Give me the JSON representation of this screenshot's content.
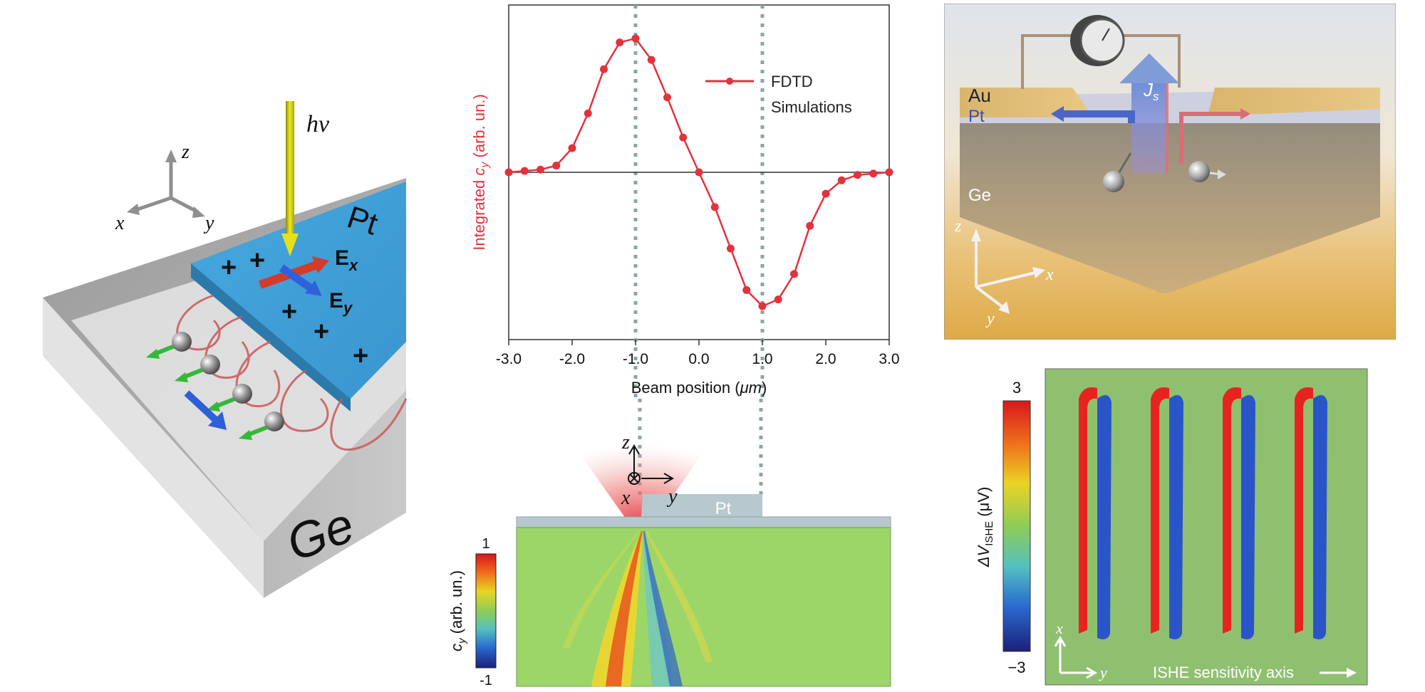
{
  "panel_a": {
    "photon_label": "hν",
    "axis_z": "z",
    "axis_x": "x",
    "axis_y": "y",
    "metal_label": "Pt",
    "substrate_label": "Ge",
    "field_x_label": "E",
    "field_x_sub": "x",
    "field_y_label": "E",
    "field_y_sub": "y",
    "charge_symbol": "+"
  },
  "panel_b": {
    "chart_data": {
      "type": "line",
      "title": "",
      "xlabel_prefix": "Beam position (",
      "xlabel_unit": "μm",
      "xlabel_suffix": ")",
      "ylabel_prefix": "Integrated ",
      "ylabel_var": "c",
      "ylabel_sub": "y",
      "ylabel_suffix": " (arb. un.)",
      "xlim": [
        -3.0,
        3.0
      ],
      "ylim": [
        -1.25,
        1.25
      ],
      "xticks": [
        "-3.0",
        "-2.0",
        "-1.0",
        "0.0",
        "1.0",
        "2.0",
        "3.0"
      ],
      "reference_lines_x": [
        -1.0,
        1.0
      ],
      "legend_position": "top-right",
      "series": [
        {
          "name_line1": "FDTD",
          "name_line2": "Simulations",
          "color": "#e2323c",
          "x": [
            -3.0,
            -2.75,
            -2.5,
            -2.25,
            -2.0,
            -1.75,
            -1.5,
            -1.25,
            -1.0,
            -0.75,
            -0.5,
            -0.25,
            0.0,
            0.25,
            0.5,
            0.75,
            1.0,
            1.25,
            1.5,
            1.75,
            2.0,
            2.25,
            2.5,
            2.75,
            3.0
          ],
          "y": [
            0.0,
            0.01,
            0.02,
            0.05,
            0.18,
            0.44,
            0.77,
            0.97,
            1.0,
            0.84,
            0.56,
            0.26,
            0.0,
            -0.26,
            -0.57,
            -0.88,
            -1.0,
            -0.95,
            -0.76,
            -0.4,
            -0.16,
            -0.06,
            -0.02,
            -0.01,
            0.0
          ]
        }
      ]
    }
  },
  "panel_c": {
    "metal_label": "Pt",
    "axis_z": "z",
    "axis_x": "x",
    "axis_y": "y",
    "colorbar_max": "1",
    "colorbar_min": "-1",
    "colorbar_label_var": "c",
    "colorbar_label_sub": "y",
    "colorbar_label_suffix": " (arb. un.)"
  },
  "panel_d": {
    "label_au": "Au",
    "label_pt": "Pt",
    "label_ge": "Ge",
    "label_js": "J",
    "label_js_sub": "s",
    "axis_z": "z",
    "axis_x": "x",
    "axis_y": "y"
  },
  "panel_e": {
    "colorbar_max": "3",
    "colorbar_min": "−3",
    "colorbar_label_prefix": "ΔV",
    "colorbar_label_sub": "ISHE",
    "colorbar_label_suffix": " (μV)",
    "axis_x": "x",
    "axis_y": "y",
    "sensitivity_label": "ISHE sensitivity axis"
  }
}
